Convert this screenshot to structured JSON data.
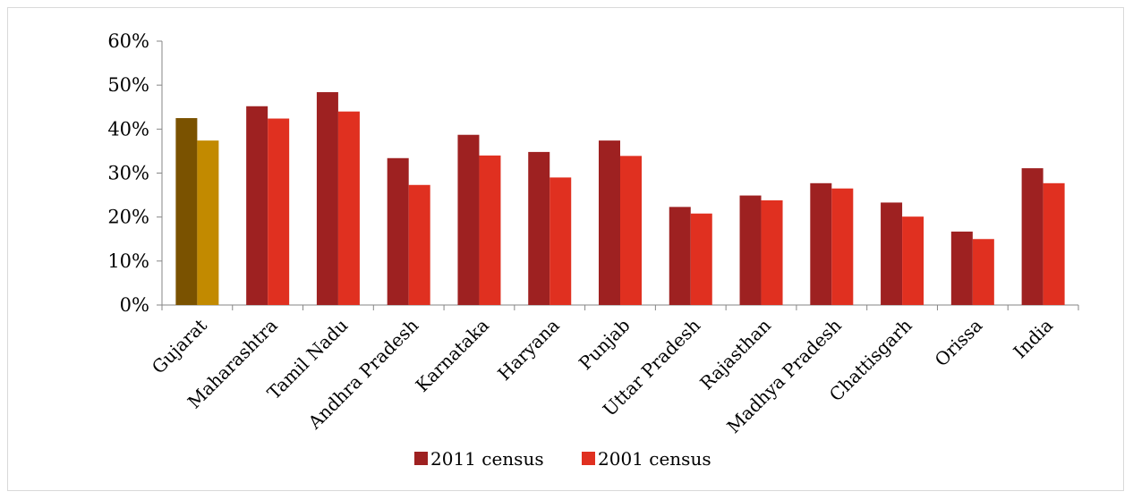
{
  "chart_data": {
    "type": "bar",
    "title": "",
    "xlabel": "",
    "ylabel": "",
    "ylim": [
      0,
      0.6
    ],
    "yticks": [
      "0%",
      "10%",
      "20%",
      "30%",
      "40%",
      "50%",
      "60%"
    ],
    "ytick_values": [
      0,
      0.1,
      0.2,
      0.3,
      0.4,
      0.5,
      0.6
    ],
    "categories": [
      "Gujarat",
      "Maharashtra",
      "Tamil Nadu",
      "Andhra Pradesh",
      "Karnataka",
      "Haryana",
      "Punjab",
      "Uttar Pradesh",
      "Rajasthan",
      "Madhya Pradesh",
      "Chattisgarh",
      "Orissa",
      "India"
    ],
    "series": [
      {
        "name": "2011 census",
        "color": "#9e2121",
        "values": [
          0.425,
          0.452,
          0.484,
          0.334,
          0.387,
          0.348,
          0.374,
          0.223,
          0.249,
          0.277,
          0.233,
          0.167,
          0.311
        ]
      },
      {
        "name": "2001 census",
        "color": "#e03020",
        "values": [
          0.374,
          0.424,
          0.44,
          0.273,
          0.34,
          0.29,
          0.339,
          0.208,
          0.238,
          0.265,
          0.201,
          0.15,
          0.277
        ]
      }
    ],
    "highlight": {
      "category": "Gujarat",
      "colors": [
        "#7a5200",
        "#c28a00"
      ]
    },
    "grid": false,
    "legend": "bottom"
  }
}
